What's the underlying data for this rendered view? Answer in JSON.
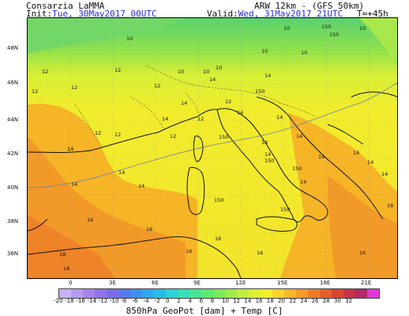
{
  "header": {
    "org": "Consarzia LaMMA",
    "model": "ARW 12km - (GFS 50km)",
    "init_label": "Init:",
    "init_value": "Tue, 30May2017 00UTC",
    "valid_label": "Valid:",
    "valid_value": "Wed, 31May2017 21UTC",
    "forecast_step": "T=+45h"
  },
  "map": {
    "lat_labels": [
      "48N",
      "46N",
      "44N",
      "42N",
      "40N",
      "38N",
      "36N"
    ],
    "lon_labels": [
      "0",
      "3E",
      "6E",
      "9E",
      "12E",
      "15E",
      "18E",
      "21E"
    ],
    "geopotential_labels": [
      "150",
      "150",
      "150",
      "150",
      "150",
      "150",
      "150",
      "150"
    ],
    "temperature_labels": [
      "10",
      "10",
      "10",
      "10",
      "10",
      "10",
      "10",
      "10",
      "12",
      "12",
      "12",
      "12",
      "12",
      "12",
      "12",
      "12",
      "12",
      "12",
      "14",
      "14",
      "14",
      "14",
      "14",
      "14",
      "14",
      "14",
      "14",
      "14",
      "14",
      "14",
      "14",
      "14",
      "14",
      "14",
      "14",
      "14",
      "16",
      "16",
      "16",
      "16",
      "16",
      "16",
      "16",
      "18",
      "18"
    ]
  },
  "legend": {
    "tick_labels": [
      "-20",
      "-18",
      "-16",
      "-14",
      "-12",
      "-10",
      "-8",
      "-6",
      "-4",
      "-2",
      "0",
      "2",
      "4",
      "6",
      "8",
      "10",
      "12",
      "14",
      "16",
      "18",
      "20",
      "22",
      "24",
      "26",
      "28",
      "30",
      "32"
    ],
    "colors": [
      "#c9b1f6",
      "#b89af0",
      "#a784ea",
      "#8f74e6",
      "#7a6cec",
      "#5a78f0",
      "#3f8ff2",
      "#2ea7f0",
      "#28bde8",
      "#2cd2d4",
      "#37dfb8",
      "#45e495",
      "#5ee874",
      "#7dea5a",
      "#9fec48",
      "#c0ee3c",
      "#dcf034",
      "#f2ee2e",
      "#f7d52a",
      "#f8b629",
      "#f49a28",
      "#ee7c27",
      "#e65f2a",
      "#da4530",
      "#c83248",
      "#b3286a",
      "#e038d6"
    ]
  },
  "footer": {
    "caption": "850hPa GeoPot [dam] + Temp [C]"
  },
  "style": {
    "header_highlight": "#2b2bd6",
    "sea_color": "#f6c21f",
    "land_color": "#eef03a",
    "cold_north": "#6fdc62"
  }
}
